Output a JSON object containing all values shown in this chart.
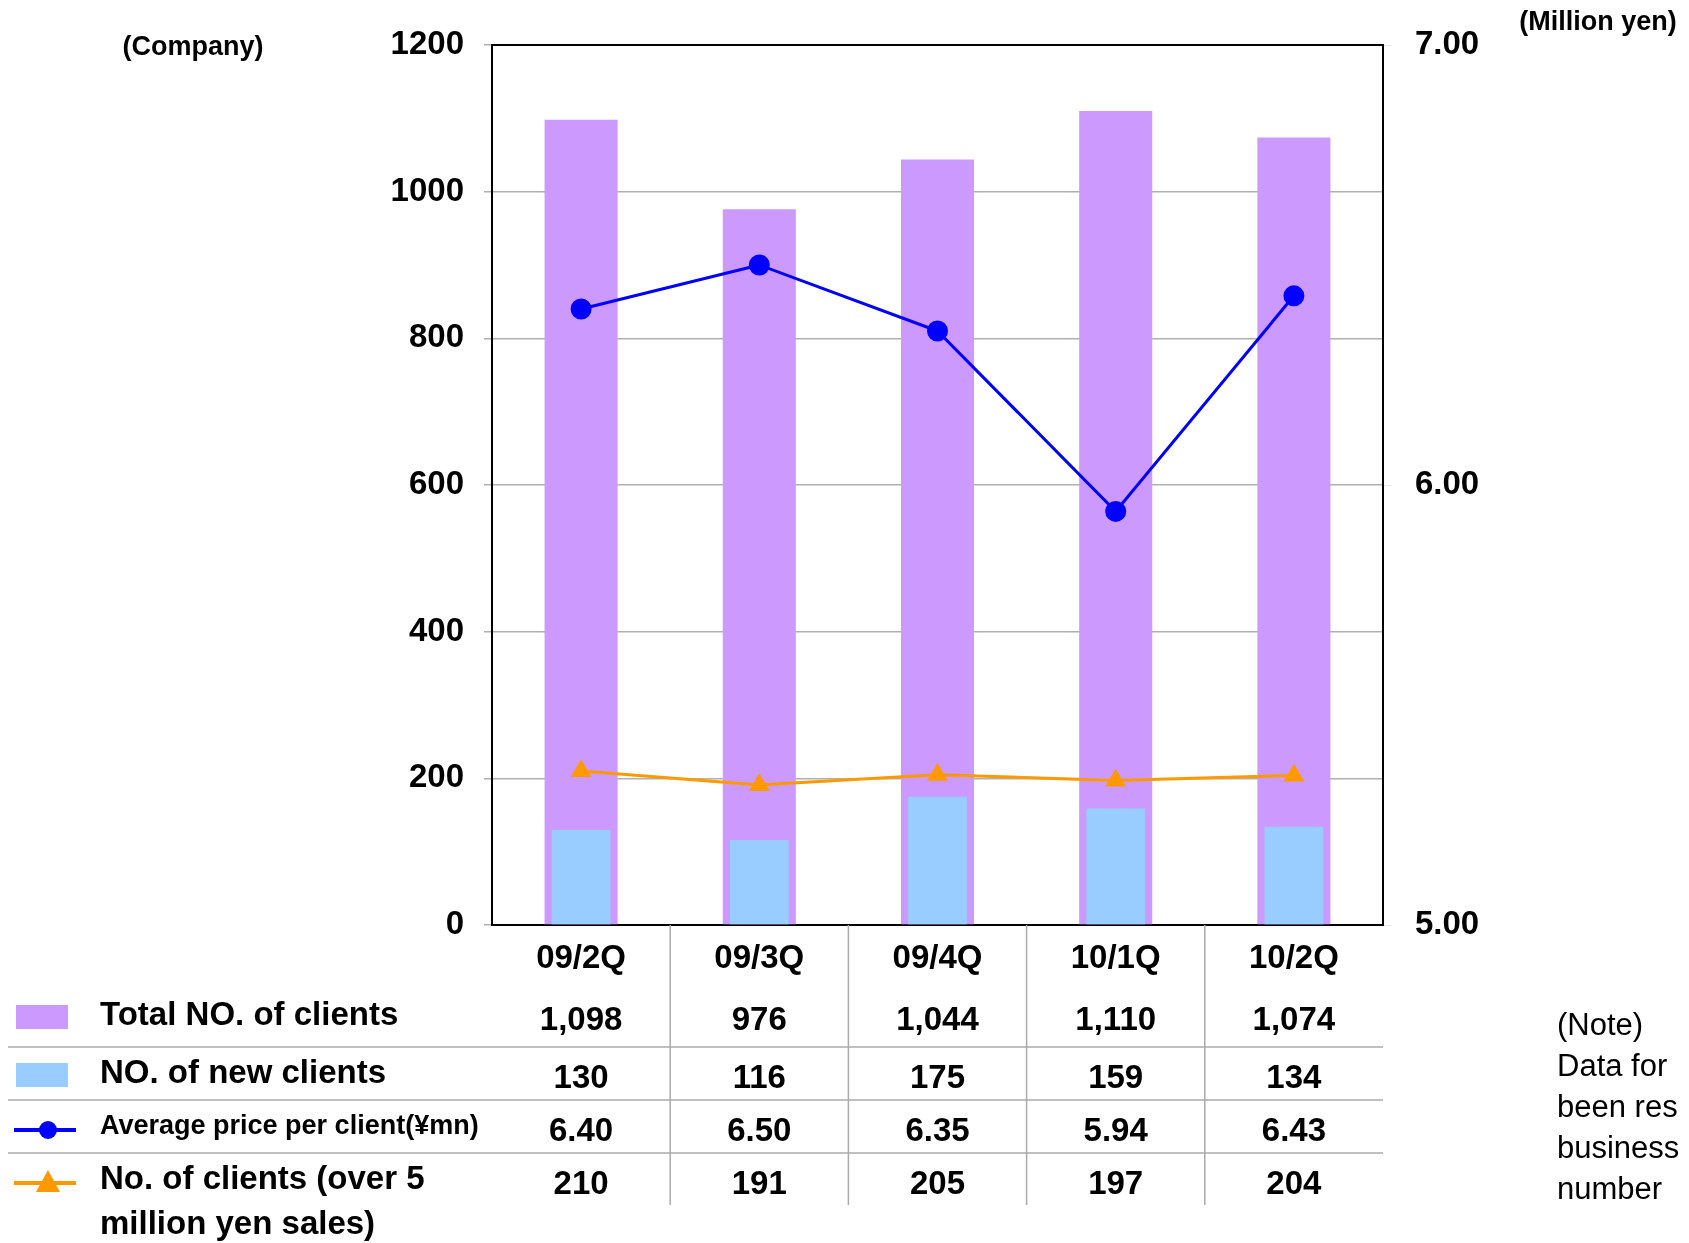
{
  "chart_data": {
    "type": "bar",
    "ylabel": "(Company)",
    "y2label": "(Million yen)",
    "categories": [
      "09/2Q",
      "09/3Q",
      "09/4Q",
      "10/1Q",
      "10/2Q"
    ],
    "series": [
      {
        "name": "Total NO. of clients",
        "color": "#cc99ff",
        "values": [
          1098,
          976,
          1044,
          1110,
          1074
        ],
        "value_labels": [
          "1,098",
          "976",
          "1,044",
          "1,110",
          "1,074"
        ]
      },
      {
        "name": "NO. of new clients",
        "color": "#99ccff",
        "values": [
          130,
          116,
          175,
          159,
          134
        ],
        "value_labels": [
          "130",
          "116",
          "175",
          "159",
          "134"
        ]
      },
      {
        "name": "Average price per client(¥mn)",
        "type": "line",
        "axis": "y2",
        "color": "#0000ff",
        "marker": "circle",
        "values": [
          6.4,
          6.5,
          6.35,
          5.94,
          6.43
        ],
        "value_labels": [
          "6.40",
          "6.50",
          "6.35",
          "5.94",
          "6.43"
        ]
      },
      {
        "name": "No. of clients (over 5 million yen sales)",
        "type": "line",
        "color": "#ff9900",
        "marker": "triangle",
        "values": [
          210,
          191,
          205,
          197,
          204
        ],
        "value_labels": [
          "210",
          "191",
          "205",
          "197",
          "204"
        ]
      }
    ],
    "ylim": [
      0,
      1200
    ],
    "yticks": [
      0,
      200,
      400,
      600,
      800,
      1000,
      1200
    ],
    "y2lim": [
      5,
      7
    ],
    "y2ticks": [
      {
        "value": 5,
        "label": "5.00"
      },
      {
        "value": 6,
        "label": "6.00"
      },
      {
        "value": 7,
        "label": "7.00"
      }
    ],
    "grid": "y",
    "legend": "bottom",
    "annotations": [
      "(Note)\nData for\nbeen res\nbusiness\nnumber"
    ]
  }
}
